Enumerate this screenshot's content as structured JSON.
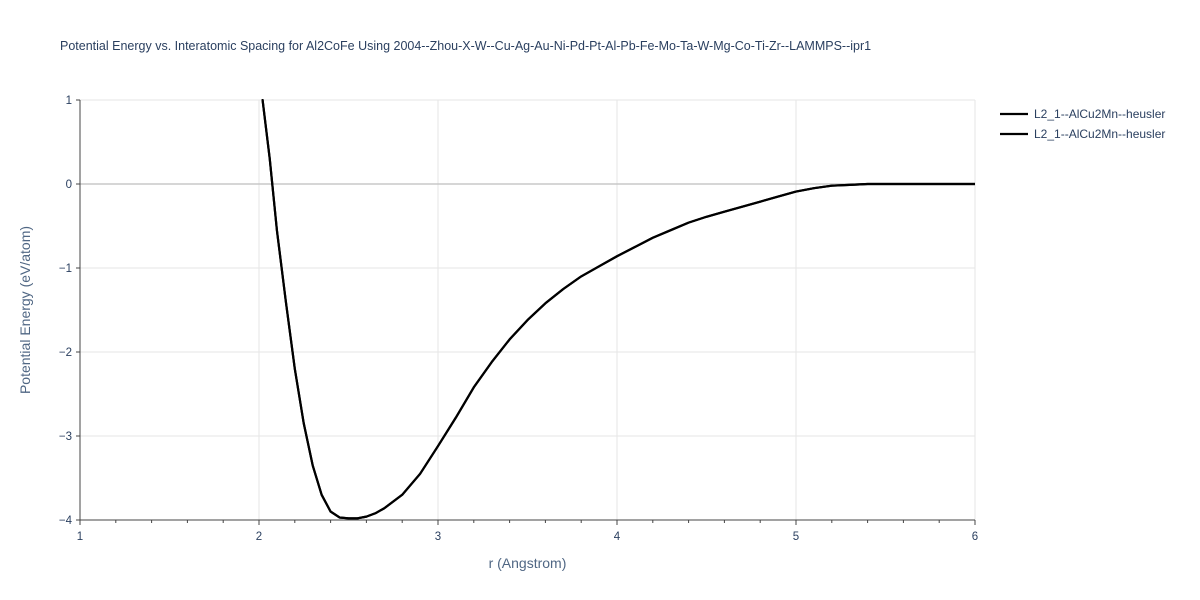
{
  "chart_data": {
    "type": "line",
    "title": "Potential Energy vs. Interatomic Spacing for Al2CoFe Using 2004--Zhou-X-W--Cu-Ag-Au-Ni-Pd-Pt-Al-Pb-Fe-Mo-Ta-W-Mg-Co-Ti-Zr--LAMMPS--ipr1",
    "xlabel": "r (Angstrom)",
    "ylabel": "Potential Energy (eV/atom)",
    "xlim": [
      1,
      6
    ],
    "ylim": [
      -4,
      1
    ],
    "x_ticks": [
      "1",
      "2",
      "3",
      "4",
      "5",
      "6"
    ],
    "y_ticks": [
      "1",
      "0",
      "−1",
      "−2",
      "−3",
      "−4"
    ],
    "grid": true,
    "legend_position": "top-right",
    "series": [
      {
        "name": "L2_1--AlCu2Mn--heusler",
        "color": "#000000",
        "x": [
          2.02,
          2.06,
          2.1,
          2.15,
          2.2,
          2.25,
          2.3,
          2.35,
          2.4,
          2.45,
          2.5,
          2.55,
          2.6,
          2.65,
          2.7,
          2.8,
          2.9,
          3.0,
          3.1,
          3.2,
          3.3,
          3.4,
          3.5,
          3.6,
          3.7,
          3.8,
          3.9,
          4.0,
          4.1,
          4.2,
          4.3,
          4.4,
          4.5,
          4.6,
          4.7,
          4.8,
          4.9,
          5.0,
          5.1,
          5.2,
          5.3,
          5.4,
          5.5,
          5.6,
          5.8,
          6.0
        ],
        "y": [
          1.0,
          0.3,
          -0.55,
          -1.4,
          -2.2,
          -2.85,
          -3.35,
          -3.7,
          -3.9,
          -3.97,
          -3.98,
          -3.98,
          -3.96,
          -3.92,
          -3.86,
          -3.7,
          -3.45,
          -3.12,
          -2.78,
          -2.42,
          -2.12,
          -1.85,
          -1.62,
          -1.42,
          -1.25,
          -1.1,
          -0.98,
          -0.86,
          -0.75,
          -0.64,
          -0.55,
          -0.46,
          -0.39,
          -0.33,
          -0.27,
          -0.21,
          -0.15,
          -0.09,
          -0.05,
          -0.02,
          -0.01,
          0.0,
          0.0,
          0.0,
          0.0,
          0.0
        ]
      },
      {
        "name": "L2_1--AlCu2Mn--heusler",
        "color": "#000000",
        "x": [
          2.02,
          2.06,
          2.1,
          2.15,
          2.2,
          2.25,
          2.3,
          2.35,
          2.4,
          2.45,
          2.5,
          2.55,
          2.6,
          2.65,
          2.7,
          2.8,
          2.9,
          3.0,
          3.1,
          3.2,
          3.3,
          3.4,
          3.5,
          3.6,
          3.7,
          3.8,
          3.9,
          4.0,
          4.1,
          4.2,
          4.3,
          4.4,
          4.5,
          4.6,
          4.7,
          4.8,
          4.9,
          5.0,
          5.1,
          5.2,
          5.3,
          5.4,
          5.5,
          5.6,
          5.8,
          6.0
        ],
        "y": [
          1.0,
          0.3,
          -0.55,
          -1.4,
          -2.2,
          -2.85,
          -3.35,
          -3.7,
          -3.9,
          -3.97,
          -3.98,
          -3.98,
          -3.96,
          -3.92,
          -3.86,
          -3.7,
          -3.45,
          -3.12,
          -2.78,
          -2.42,
          -2.12,
          -1.85,
          -1.62,
          -1.42,
          -1.25,
          -1.1,
          -0.98,
          -0.86,
          -0.75,
          -0.64,
          -0.55,
          -0.46,
          -0.39,
          -0.33,
          -0.27,
          -0.21,
          -0.15,
          -0.09,
          -0.05,
          -0.02,
          -0.01,
          0.0,
          0.0,
          0.0,
          0.0,
          0.0
        ]
      }
    ]
  }
}
